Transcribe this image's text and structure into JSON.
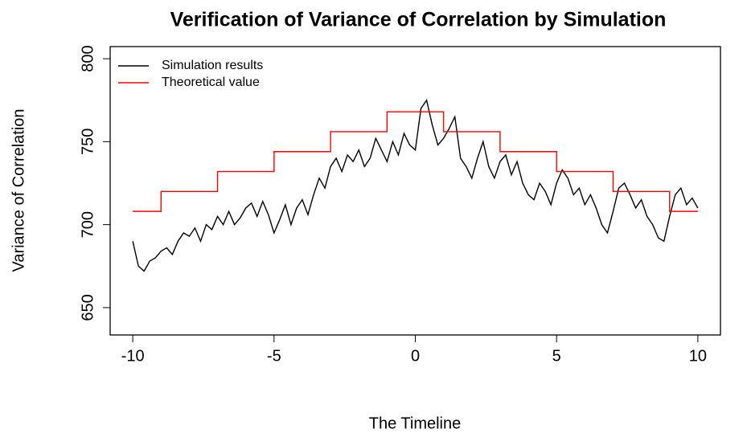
{
  "chart_data": {
    "type": "line",
    "title": "Verification of Variance of Correlation by Simulation",
    "x_label": "The Timeline",
    "y_label": "Variance of Correlation",
    "xlim": [
      -10.8,
      10.8
    ],
    "ylim": [
      633.5,
      807.3
    ],
    "xticks": [
      -10,
      -5,
      0,
      5,
      10
    ],
    "yticks": [
      650,
      700,
      750,
      800
    ],
    "legend": "top-left",
    "series": [
      {
        "name": "Simulation results",
        "color": "#000000",
        "x": [
          -10,
          -9.8,
          -9.6,
          -9.4,
          -9.2,
          -9,
          -8.8,
          -8.6,
          -8.4,
          -8.2,
          -8,
          -7.8,
          -7.6,
          -7.4,
          -7.2,
          -7,
          -6.8,
          -6.6,
          -6.4,
          -6.2,
          -6,
          -5.8,
          -5.6,
          -5.4,
          -5.2,
          -5,
          -4.8,
          -4.6,
          -4.4,
          -4.2,
          -4,
          -3.8,
          -3.6,
          -3.4,
          -3.2,
          -3,
          -2.8,
          -2.6,
          -2.4,
          -2.2,
          -2,
          -1.8,
          -1.6,
          -1.4,
          -1.2,
          -1,
          -0.8,
          -0.6,
          -0.4,
          -0.2,
          0,
          0.2,
          0.4,
          0.6,
          0.8,
          1,
          1.2,
          1.4,
          1.6,
          1.8,
          2,
          2.2,
          2.4,
          2.6,
          2.8,
          3,
          3.2,
          3.4,
          3.6,
          3.8,
          4,
          4.2,
          4.4,
          4.6,
          4.8,
          5,
          5.2,
          5.4,
          5.6,
          5.8,
          6,
          6.2,
          6.4,
          6.6,
          6.8,
          7,
          7.2,
          7.4,
          7.6,
          7.8,
          8,
          8.2,
          8.4,
          8.6,
          8.8,
          9,
          9.2,
          9.4,
          9.6,
          9.8,
          10
        ],
        "values": [
          690,
          675,
          672,
          678,
          680,
          684,
          686,
          682,
          690,
          695,
          693,
          698,
          690,
          700,
          697,
          705,
          700,
          708,
          700,
          704,
          710,
          713,
          705,
          714,
          706,
          695,
          703,
          712,
          700,
          710,
          715,
          706,
          718,
          728,
          722,
          735,
          740,
          732,
          742,
          738,
          745,
          735,
          740,
          752,
          745,
          738,
          750,
          742,
          755,
          748,
          745,
          770,
          775,
          760,
          748,
          752,
          758,
          765,
          740,
          735,
          728,
          740,
          750,
          735,
          728,
          738,
          742,
          730,
          738,
          725,
          718,
          715,
          725,
          720,
          712,
          725,
          733,
          728,
          718,
          722,
          712,
          718,
          710,
          700,
          695,
          708,
          722,
          725,
          718,
          710,
          715,
          705,
          700,
          692,
          690,
          705,
          718,
          722,
          712,
          716,
          710
        ]
      },
      {
        "name": "Theoretical value",
        "color": "#ff0000",
        "x": [
          -10,
          -9,
          -9,
          -7,
          -7,
          -5,
          -5,
          -3,
          -3,
          -1,
          -1,
          1,
          1,
          3,
          3,
          5,
          5,
          7,
          7,
          9,
          9,
          10
        ],
        "values": [
          708,
          708,
          720,
          720,
          732,
          732,
          744,
          744,
          756,
          756,
          768,
          768,
          756,
          756,
          744,
          744,
          732,
          732,
          720,
          720,
          708,
          708
        ]
      }
    ]
  }
}
